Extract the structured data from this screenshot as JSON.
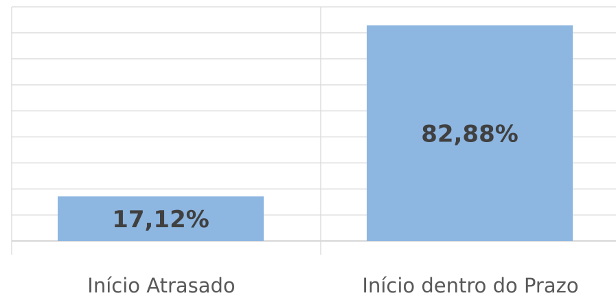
{
  "chart_data": {
    "type": "bar",
    "categories": [
      "Início Atrasado",
      "Início dentro do Prazo"
    ],
    "values": [
      17.12,
      82.88
    ],
    "value_labels": [
      "17,12%",
      "82,88%"
    ],
    "color": "#8db6e1",
    "ylim": [
      0,
      90
    ],
    "yticks": [
      0,
      10,
      20,
      30,
      40,
      50,
      60,
      70,
      80,
      90
    ],
    "grid": true
  }
}
